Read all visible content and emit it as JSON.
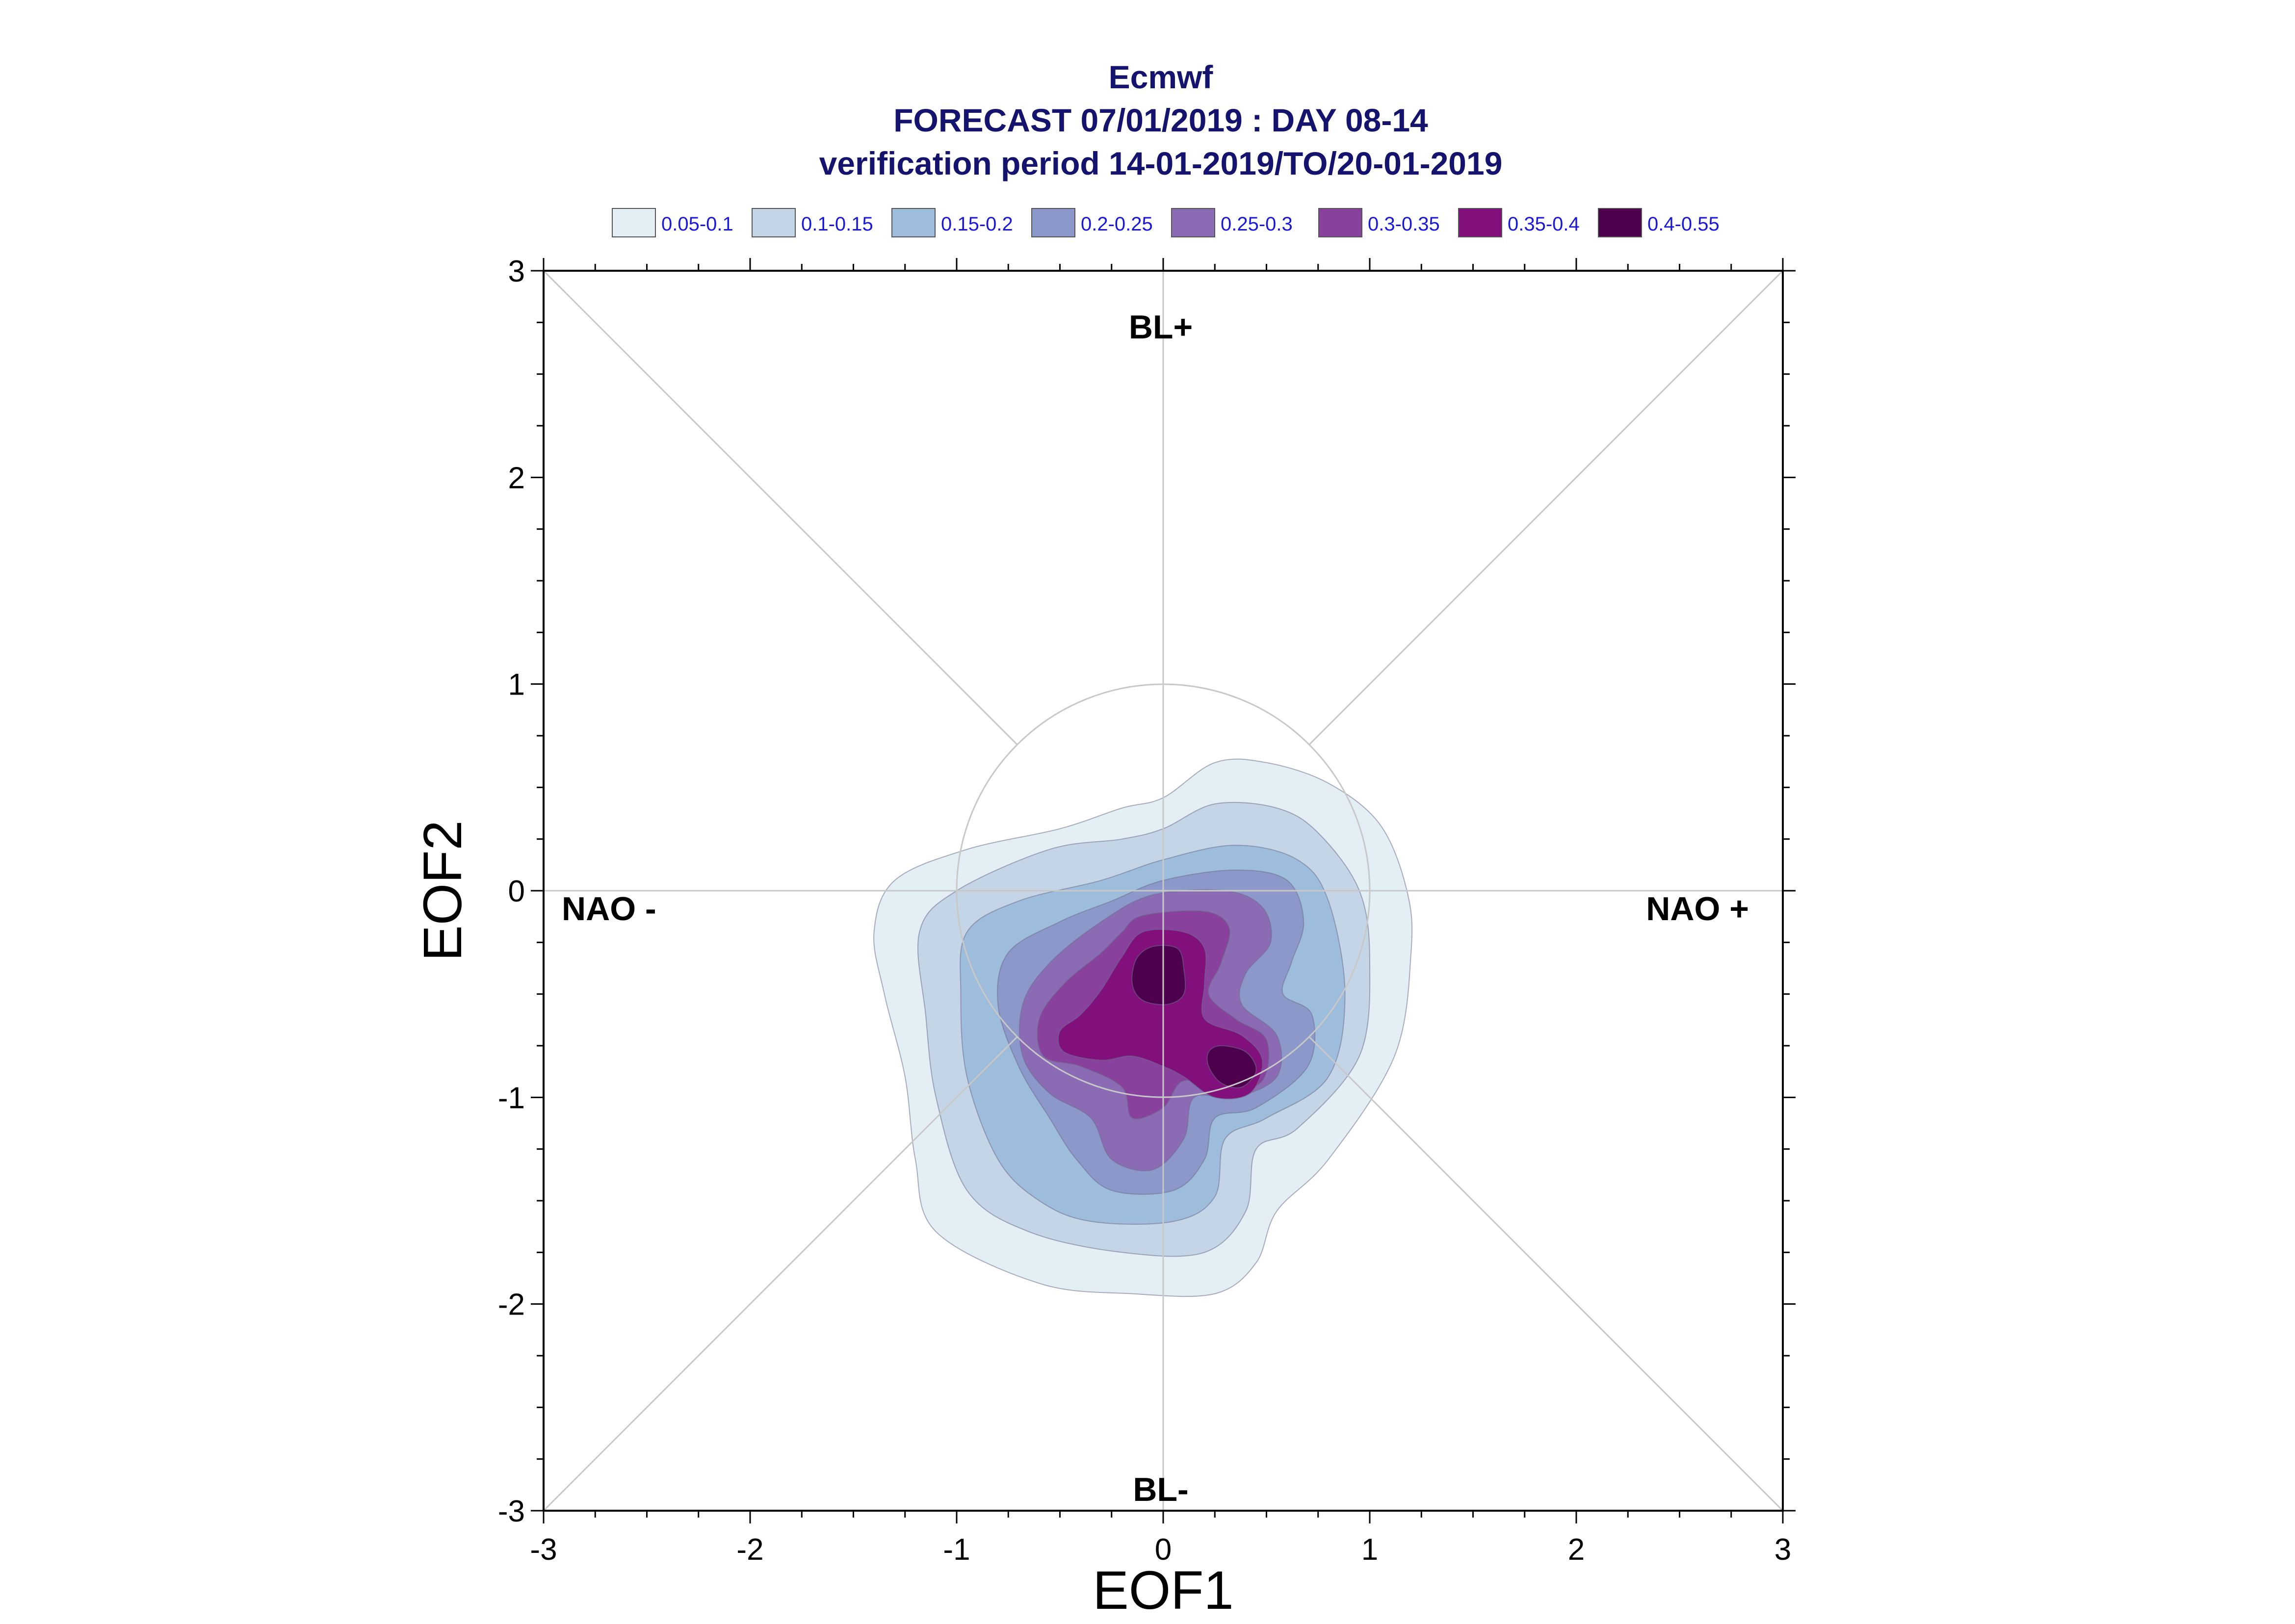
{
  "chart_data": {
    "type": "contour",
    "title_lines": [
      "Ecmwf",
      "FORECAST 07/01/2019 : DAY 08-14",
      "verification period 14-01-2019/TO/20-01-2019"
    ],
    "xlabel": "EOF1",
    "ylabel": "EOF2",
    "xlim": [
      -3,
      3
    ],
    "ylim": [
      -3,
      3
    ],
    "x_ticks": [
      "-3",
      "-2",
      "-1",
      "0",
      "1",
      "2",
      "3"
    ],
    "y_ticks": [
      "-3",
      "-2",
      "-1",
      "0",
      "1",
      "2",
      "3"
    ],
    "legend_position": "top",
    "legend": [
      {
        "label": "0.05-0.1",
        "color": "#e4eef5"
      },
      {
        "label": "0.1-0.15",
        "color": "#c3d5e6"
      },
      {
        "label": "0.15-0.2",
        "color": "#9ebcdb"
      },
      {
        "label": "0.2-0.25",
        "color": "#8c98c9"
      },
      {
        "label": "0.25-0.3",
        "color": "#8b6bb4"
      },
      {
        "label": "0.3-0.35",
        "color": "#88419d"
      },
      {
        "label": "0.35-0.4",
        "color": "#810f7c"
      },
      {
        "label": "0.4-0.55",
        "color": "#4d004b"
      }
    ],
    "regime_labels": {
      "top": "BL+",
      "bottom": "BL-",
      "left": "NAO -",
      "right": "NAO +"
    },
    "reference_circle_radius": 1,
    "diagonals": true,
    "density_levels": [
      {
        "range": "0.05-0.1",
        "color": "#e4eef5",
        "polygons": [
          [
            [
              -0.0,
              0.45
            ],
            [
              0.25,
              0.62
            ],
            [
              0.5,
              0.62
            ],
            [
              0.8,
              0.52
            ],
            [
              1.05,
              0.32
            ],
            [
              1.18,
              0.0
            ],
            [
              1.2,
              -0.3
            ],
            [
              1.12,
              -0.8
            ],
            [
              0.8,
              -1.3
            ],
            [
              0.55,
              -1.55
            ],
            [
              0.45,
              -1.8
            ],
            [
              0.25,
              -1.95
            ],
            [
              -0.15,
              -1.95
            ],
            [
              -0.6,
              -1.9
            ],
            [
              -1.1,
              -1.65
            ],
            [
              -1.2,
              -1.3
            ],
            [
              -1.25,
              -0.9
            ],
            [
              -1.35,
              -0.5
            ],
            [
              -1.4,
              -0.2
            ],
            [
              -1.3,
              0.05
            ],
            [
              -0.95,
              0.2
            ],
            [
              -0.5,
              0.3
            ],
            [
              -0.2,
              0.4
            ]
          ]
        ]
      },
      {
        "range": "0.1-0.15",
        "color": "#c3d5e6",
        "polygons": [
          [
            [
              -0.0,
              0.3
            ],
            [
              0.25,
              0.42
            ],
            [
              0.55,
              0.4
            ],
            [
              0.75,
              0.28
            ],
            [
              0.95,
              0.0
            ],
            [
              1.0,
              -0.35
            ],
            [
              0.95,
              -0.8
            ],
            [
              0.65,
              -1.15
            ],
            [
              0.45,
              -1.25
            ],
            [
              0.4,
              -1.55
            ],
            [
              0.2,
              -1.75
            ],
            [
              -0.2,
              -1.75
            ],
            [
              -0.65,
              -1.65
            ],
            [
              -0.95,
              -1.45
            ],
            [
              -1.1,
              -1.0
            ],
            [
              -1.15,
              -0.6
            ],
            [
              -1.18,
              -0.2
            ],
            [
              -1.0,
              0.0
            ],
            [
              -0.55,
              0.2
            ],
            [
              -0.2,
              0.25
            ]
          ]
        ]
      },
      {
        "range": "0.15-0.2",
        "color": "#9ebcdb",
        "polygons": [
          [
            [
              -0.0,
              0.15
            ],
            [
              0.35,
              0.22
            ],
            [
              0.65,
              0.15
            ],
            [
              0.8,
              -0.05
            ],
            [
              0.88,
              -0.5
            ],
            [
              0.8,
              -0.9
            ],
            [
              0.5,
              -1.1
            ],
            [
              0.3,
              -1.2
            ],
            [
              0.25,
              -1.48
            ],
            [
              0.05,
              -1.6
            ],
            [
              -0.35,
              -1.6
            ],
            [
              -0.6,
              -1.5
            ],
            [
              -0.8,
              -1.3
            ],
            [
              -0.95,
              -0.9
            ],
            [
              -0.98,
              -0.5
            ],
            [
              -0.95,
              -0.2
            ],
            [
              -0.7,
              -0.05
            ],
            [
              -0.3,
              0.05
            ]
          ]
        ]
      },
      {
        "range": "0.2-0.25",
        "color": "#8c98c9",
        "polygons": [
          [
            [
              -0.0,
              0.05
            ],
            [
              0.35,
              0.1
            ],
            [
              0.6,
              0.05
            ],
            [
              0.68,
              -0.15
            ],
            [
              0.62,
              -0.35
            ],
            [
              0.58,
              -0.5
            ],
            [
              0.72,
              -0.6
            ],
            [
              0.7,
              -0.85
            ],
            [
              0.45,
              -1.05
            ],
            [
              0.25,
              -1.1
            ],
            [
              0.2,
              -1.3
            ],
            [
              0.05,
              -1.45
            ],
            [
              -0.25,
              -1.45
            ],
            [
              -0.42,
              -1.3
            ],
            [
              -0.55,
              -1.1
            ],
            [
              -0.7,
              -0.85
            ],
            [
              -0.8,
              -0.55
            ],
            [
              -0.75,
              -0.3
            ],
            [
              -0.5,
              -0.15
            ],
            [
              -0.25,
              -0.05
            ]
          ]
        ]
      },
      {
        "range": "0.25-0.3",
        "color": "#8b6bb4",
        "polygons": [
          [
            [
              -0.05,
              -0.02
            ],
            [
              0.3,
              -0.0
            ],
            [
              0.48,
              -0.08
            ],
            [
              0.52,
              -0.25
            ],
            [
              0.4,
              -0.4
            ],
            [
              0.38,
              -0.55
            ],
            [
              0.55,
              -0.7
            ],
            [
              0.55,
              -0.9
            ],
            [
              0.35,
              -1.0
            ],
            [
              0.15,
              -1.0
            ],
            [
              0.1,
              -1.2
            ],
            [
              -0.05,
              -1.35
            ],
            [
              -0.25,
              -1.3
            ],
            [
              -0.35,
              -1.1
            ],
            [
              -0.55,
              -0.98
            ],
            [
              -0.68,
              -0.8
            ],
            [
              -0.68,
              -0.55
            ],
            [
              -0.55,
              -0.35
            ],
            [
              -0.3,
              -0.15
            ]
          ]
        ]
      },
      {
        "range": "0.3-0.35",
        "color": "#88419d",
        "polygons": [
          [
            [
              -0.1,
              -0.12
            ],
            [
              0.2,
              -0.1
            ],
            [
              0.32,
              -0.18
            ],
            [
              0.28,
              -0.35
            ],
            [
              0.22,
              -0.5
            ],
            [
              0.35,
              -0.62
            ],
            [
              0.5,
              -0.72
            ],
            [
              0.48,
              -0.92
            ],
            [
              0.3,
              -0.97
            ],
            [
              0.1,
              -0.92
            ],
            [
              0.0,
              -1.05
            ],
            [
              -0.15,
              -1.1
            ],
            [
              -0.2,
              -0.95
            ],
            [
              -0.4,
              -0.85
            ],
            [
              -0.58,
              -0.8
            ],
            [
              -0.6,
              -0.62
            ],
            [
              -0.48,
              -0.45
            ],
            [
              -0.3,
              -0.3
            ],
            [
              -0.2,
              -0.2
            ]
          ]
        ]
      },
      {
        "range": "0.35-0.4",
        "color": "#810f7c",
        "polygons": [
          [
            [
              -0.1,
              -0.2
            ],
            [
              0.1,
              -0.2
            ],
            [
              0.2,
              -0.28
            ],
            [
              0.2,
              -0.45
            ],
            [
              0.2,
              -0.62
            ],
            [
              0.38,
              -0.7
            ],
            [
              0.48,
              -0.82
            ],
            [
              0.42,
              -0.98
            ],
            [
              0.25,
              -1.0
            ],
            [
              0.1,
              -0.9
            ],
            [
              0.0,
              -0.85
            ],
            [
              -0.15,
              -0.8
            ],
            [
              -0.3,
              -0.82
            ],
            [
              -0.48,
              -0.78
            ],
            [
              -0.5,
              -0.68
            ],
            [
              -0.4,
              -0.6
            ],
            [
              -0.3,
              -0.48
            ],
            [
              -0.2,
              -0.32
            ]
          ]
        ]
      },
      {
        "range": "0.4-0.55",
        "color": "#4d004b",
        "polygons": [
          [
            [
              -0.05,
              -0.27
            ],
            [
              0.07,
              -0.28
            ],
            [
              0.1,
              -0.38
            ],
            [
              0.1,
              -0.5
            ],
            [
              0.02,
              -0.55
            ],
            [
              -0.1,
              -0.53
            ],
            [
              -0.15,
              -0.45
            ],
            [
              -0.13,
              -0.33
            ]
          ],
          [
            [
              0.28,
              -0.75
            ],
            [
              0.4,
              -0.78
            ],
            [
              0.45,
              -0.87
            ],
            [
              0.38,
              -0.95
            ],
            [
              0.28,
              -0.93
            ],
            [
              0.22,
              -0.85
            ],
            [
              0.22,
              -0.78
            ]
          ]
        ]
      }
    ]
  }
}
